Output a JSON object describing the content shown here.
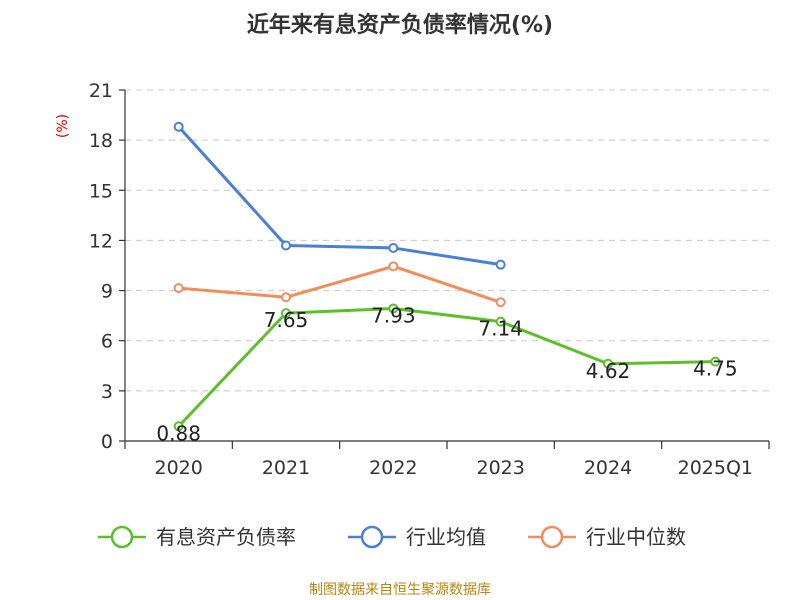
{
  "chart_data": {
    "type": "line",
    "title": "近年来有息资产负债率情况(%)",
    "ylabel": "(%)",
    "xlabel": "",
    "categories": [
      "2020",
      "2021",
      "2022",
      "2023",
      "2024",
      "2025Q1"
    ],
    "ylim": [
      0,
      21
    ],
    "yticks": [
      0,
      3,
      6,
      9,
      12,
      15,
      18,
      21
    ],
    "grid": true,
    "legend_position": "bottom",
    "series": [
      {
        "name": "有息资产负债率",
        "color": "#5bbf2a",
        "values": [
          0.88,
          7.65,
          7.93,
          7.14,
          4.62,
          4.75
        ],
        "labels": [
          "0.88",
          "7.65",
          "7.93",
          "7.14",
          "4.62",
          "4.75"
        ],
        "show_labels": true
      },
      {
        "name": "行业均值",
        "color": "#4a7fd6",
        "values": [
          18.8,
          11.7,
          11.55,
          10.55,
          null,
          null
        ],
        "show_labels": false
      },
      {
        "name": "行业中位数",
        "color": "#f28c5a",
        "values": [
          9.15,
          8.6,
          10.45,
          8.3,
          null,
          null
        ],
        "show_labels": false
      }
    ],
    "source": "制图数据来自恒生聚源数据库"
  }
}
